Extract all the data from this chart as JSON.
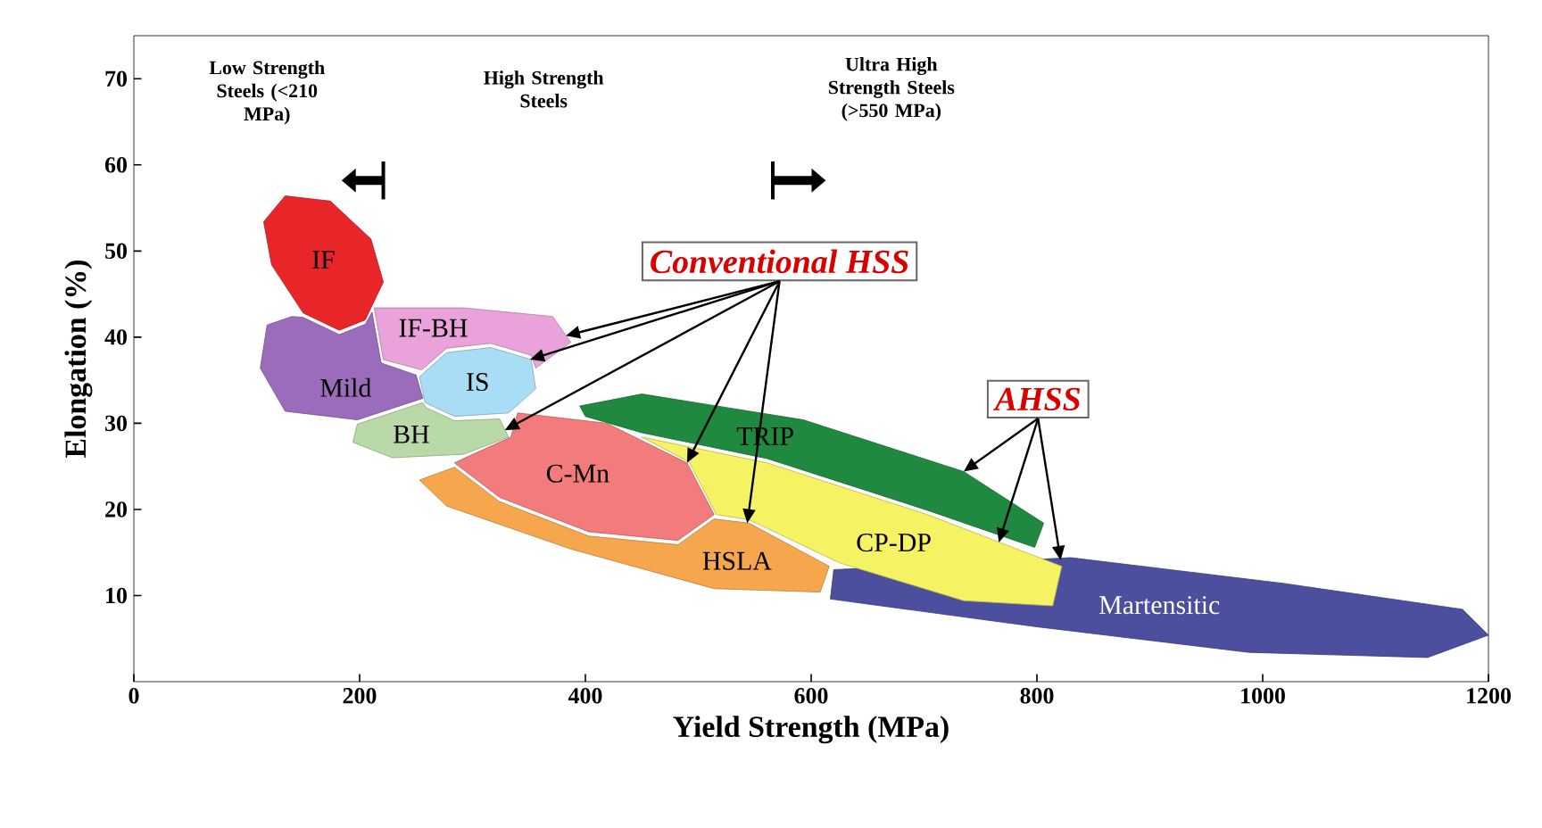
{
  "chart_data": {
    "type": "area",
    "xlabel": "Yield Strength (MPa)",
    "ylabel": "Elongation (%)",
    "xlim": [
      0,
      1200
    ],
    "ylim": [
      0,
      75
    ],
    "xticks": [
      0,
      200,
      400,
      600,
      800,
      1000,
      1200
    ],
    "yticks": [
      10,
      20,
      30,
      40,
      50,
      60,
      70
    ],
    "series": [
      {
        "name": "Martensitic",
        "color": "#4b4f9e",
        "x": [
          620,
          830,
          1019,
          1177,
          1200,
          1146,
          988,
          798,
          617
        ],
        "values": [
          13.0,
          14.4,
          11.4,
          8.4,
          5.4,
          2.8,
          3.4,
          6.4,
          9.6
        ]
      },
      {
        "name": "TRIP",
        "color": "#1f8a3f",
        "x": [
          395,
          450,
          593,
          735,
          806,
          798,
          703,
          561,
          450,
          400
        ],
        "values": [
          32,
          33.4,
          30.4,
          24.4,
          18.4,
          15.6,
          19.9,
          25.9,
          28.9,
          30.8
        ]
      },
      {
        "name": "CP-DP",
        "color": "#f5f264",
        "x": [
          450,
          561,
          703,
          822,
          814,
          735,
          625,
          545,
          516,
          492
        ],
        "values": [
          28.4,
          25.4,
          19.4,
          13.4,
          8.8,
          9.4,
          13.8,
          18.8,
          19.4,
          25.5
        ]
      },
      {
        "name": "HSLA",
        "color": "#f6a74e",
        "x": [
          253,
          284,
          324,
          403,
          482,
          514,
          545,
          616,
          608,
          514,
          387,
          277
        ],
        "values": [
          23.4,
          24.9,
          20.9,
          16.9,
          15.9,
          18.9,
          18.4,
          13.4,
          10.4,
          10.8,
          15.4,
          20.4
        ]
      },
      {
        "name": "C-Mn",
        "color": "#f27b7b",
        "x": [
          292,
          334,
          340,
          419,
          490,
          514,
          482,
          403,
          324,
          284
        ],
        "values": [
          25.9,
          28.4,
          31.2,
          30,
          25.4,
          19.4,
          16.4,
          17.4,
          21.4,
          25.4
        ]
      },
      {
        "name": "BH",
        "color": "#bad9a8",
        "x": [
          198,
          256,
          259,
          284,
          324,
          332,
          292,
          229,
          194
        ],
        "values": [
          29.9,
          32.4,
          31.8,
          30.3,
          30.5,
          28.4,
          26.4,
          26,
          27.8
        ]
      },
      {
        "name": "Mild",
        "color": "#9b6cbc",
        "x": [
          118,
          140,
          150,
          182,
          205,
          211,
          219,
          250,
          256,
          198,
          134,
          112
        ],
        "values": [
          41.4,
          42.4,
          42.3,
          40.3,
          41.5,
          42.9,
          37.0,
          35.6,
          32.9,
          30.4,
          31.4,
          36.4
        ]
      },
      {
        "name": "IF-BH",
        "color": "#eaa2da",
        "x": [
          213,
          292,
          371,
          387,
          356,
          352,
          316,
          277,
          255,
          221
        ],
        "values": [
          43.4,
          43.4,
          42.4,
          39.4,
          36.4,
          37.9,
          39.3,
          38.7,
          36.2,
          37.4
        ]
      },
      {
        "name": "IS",
        "color": "#a9dcf5",
        "x": [
          253,
          277,
          316,
          352,
          356,
          332,
          284,
          258
        ],
        "values": [
          35.4,
          38.2,
          38.8,
          37.4,
          34,
          31.2,
          30.8,
          32.4
        ]
      },
      {
        "name": "IF",
        "color": "#e8262a",
        "x": [
          134,
          174,
          210,
          221,
          205,
          182,
          150,
          122,
          115
        ],
        "values": [
          56.4,
          55.8,
          51.4,
          46.4,
          42,
          40.8,
          42.8,
          48.4,
          53.4
        ]
      }
    ],
    "annotations": [
      "Low Strength Steels (<210 MPa)",
      "High Strength Steels",
      "Ultra High Strength Steels (>550 MPa)",
      {
        "text": "Conventional HSS",
        "x": 490,
        "y": 25.4
      },
      {
        "text": "AHSS",
        "x": 735,
        "y": 24.4
      }
    ]
  }
}
